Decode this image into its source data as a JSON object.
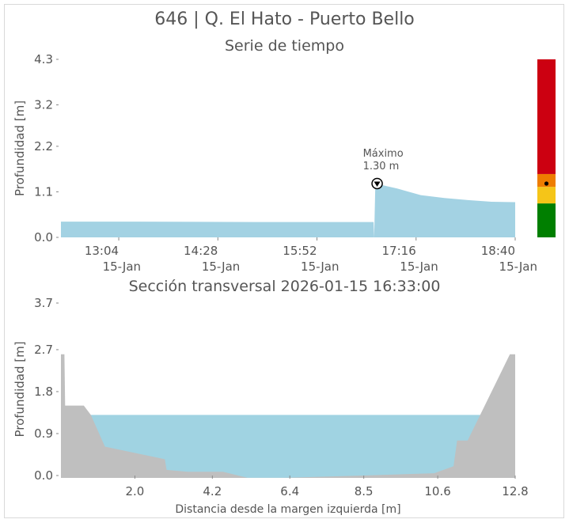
{
  "title": "646 | Q. El Hato - Puerto Bello",
  "chart_data": [
    {
      "type": "area",
      "subtitle": "Serie de tiempo",
      "ylabel": "Profundidad [m]",
      "yticks": [
        "0.0",
        "1.1",
        "2.2",
        "3.2",
        "4.3"
      ],
      "ytick_values": [
        0.0,
        1.1,
        2.2,
        3.2,
        4.3
      ],
      "ylim": [
        0,
        4.3
      ],
      "xticks": [
        {
          "time": "13:04",
          "date": "15-Jan",
          "value": 784
        },
        {
          "time": "14:28",
          "date": "15-Jan",
          "value": 868
        },
        {
          "time": "15:52",
          "date": "15-Jan",
          "value": 952
        },
        {
          "time": "17:16",
          "date": "15-Jan",
          "value": 1036
        },
        {
          "time": "18:40",
          "date": "15-Jan",
          "value": 1120
        }
      ],
      "xlim": [
        735,
        1120
      ],
      "fill_color": "#a3d2e3",
      "series": [
        {
          "x": [
            735,
            800,
            900,
            1000,
            1000.5,
            1001.5,
            1020,
            1040,
            1060,
            1080,
            1100,
            1120
          ],
          "y": [
            0.38,
            0.38,
            0.37,
            0.37,
            0.0,
            1.3,
            1.18,
            1.02,
            0.95,
            0.9,
            0.86,
            0.85
          ]
        }
      ],
      "annotation": {
        "label": "Máximo",
        "value_text": "1.30 m",
        "x": 1003,
        "y": 1.3
      },
      "alert_levels": [
        {
          "color": "#007f00",
          "from": 0.0,
          "to": 0.82
        },
        {
          "color": "#f5c518",
          "from": 0.82,
          "to": 1.22
        },
        {
          "color": "#ee7d00",
          "from": 1.22,
          "to": 1.53
        },
        {
          "color": "#cc0011",
          "from": 1.53,
          "to": 4.3
        }
      ],
      "current_level": 1.3
    },
    {
      "type": "area",
      "subtitle": "Sección transversal 2026-01-15 16:33:00",
      "ylabel": "Profundidad [m]",
      "xlabel": "Distancia desde la margen izquierda [m]",
      "yticks": [
        "0.0",
        "0.9",
        "1.8",
        "2.7",
        "3.7"
      ],
      "ytick_values": [
        0.0,
        0.9,
        1.8,
        2.7,
        3.7
      ],
      "ylim": [
        0,
        3.7
      ],
      "xticks": [
        "2.0",
        "4.2",
        "6.4",
        "8.5",
        "10.6",
        "12.8"
      ],
      "xtick_values": [
        2.0,
        4.2,
        6.4,
        8.5,
        10.6,
        12.8
      ],
      "xlim": [
        -0.1,
        12.8
      ],
      "water_level": 1.3,
      "water_color": "#a0d3e2",
      "ground_color": "#bfbfbf",
      "ground": {
        "x": [
          -0.1,
          0.0,
          0.02,
          0.55,
          0.75,
          1.15,
          2.85,
          2.9,
          3.5,
          4.5,
          5.2,
          6.2,
          8.5,
          10.5,
          11.05,
          11.15,
          11.45,
          12.65,
          12.8
        ],
        "y": [
          2.6,
          2.6,
          1.5,
          1.5,
          1.3,
          0.62,
          0.35,
          0.12,
          0.08,
          0.08,
          -0.05,
          -0.05,
          0.0,
          0.05,
          0.2,
          0.75,
          0.75,
          2.6,
          2.6
        ]
      }
    }
  ]
}
